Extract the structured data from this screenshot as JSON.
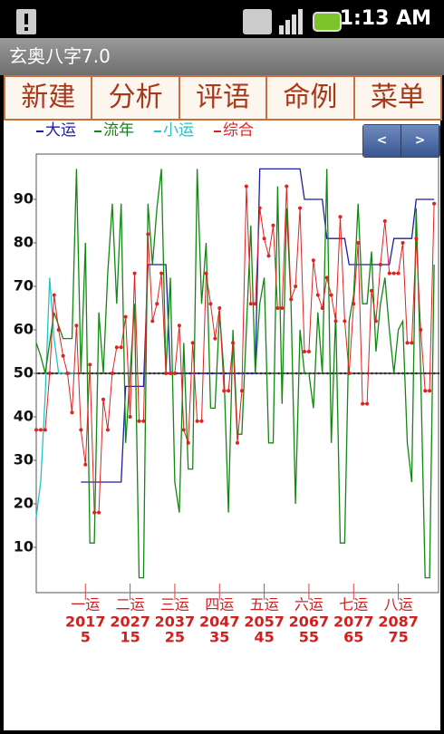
{
  "status": {
    "time": "1:13 AM"
  },
  "app": {
    "title": "玄奥八字7.0"
  },
  "menu": [
    "新建",
    "分析",
    "评语",
    "命例",
    "菜单"
  ],
  "nav": [
    "<",
    ">"
  ],
  "chart_data": {
    "type": "line",
    "x": [
      -6,
      -5,
      -4,
      -3,
      -2,
      -1,
      0,
      1,
      2,
      3,
      4,
      5,
      6,
      7,
      8,
      9,
      10,
      11,
      12,
      13,
      14,
      15,
      16,
      17,
      18,
      19,
      20,
      21,
      22,
      23,
      24,
      25,
      26,
      27,
      28,
      29,
      30,
      31,
      32,
      33,
      34,
      35,
      36,
      37,
      38,
      39,
      40,
      41,
      42,
      43,
      44,
      45,
      46,
      47,
      48,
      49,
      50,
      51,
      52,
      53,
      54,
      55,
      56,
      57,
      58,
      59,
      60,
      61,
      62,
      63,
      64,
      65,
      66,
      67,
      68,
      69,
      70,
      71,
      72,
      73,
      74,
      75,
      76,
      77,
      78,
      79,
      80,
      81,
      82,
      83
    ],
    "xlim": [
      -6,
      84
    ],
    "xticks": [
      5,
      15,
      25,
      35,
      45,
      55,
      65,
      75
    ],
    "xtick_periods": [
      "一运",
      "二运",
      "三运",
      "四运",
      "五运",
      "六运",
      "七运",
      "八运"
    ],
    "xtick_years": [
      "2017",
      "2027",
      "2037",
      "2047",
      "2057",
      "2067",
      "2077",
      "2087"
    ],
    "ylim": [
      0,
      100
    ],
    "yticks": [
      10,
      20,
      30,
      40,
      50,
      60,
      70,
      80,
      90
    ],
    "baseline": 50,
    "series": [
      {
        "name": "大运",
        "color": "#1c1ca8",
        "values": [
          null,
          null,
          null,
          null,
          null,
          null,
          null,
          null,
          null,
          null,
          25,
          25,
          25,
          25,
          25,
          25,
          25,
          25,
          25,
          25,
          47,
          47,
          47,
          47,
          47,
          75,
          75,
          75,
          75,
          75,
          50,
          50,
          50,
          50,
          50,
          50,
          50,
          50,
          50,
          50,
          50,
          50,
          50,
          50,
          50,
          50,
          50,
          50,
          50,
          50,
          97,
          97,
          97,
          97,
          97,
          97,
          97,
          97,
          97,
          97,
          90,
          90,
          90,
          90,
          90,
          81,
          81,
          81,
          81,
          81,
          75,
          75,
          75,
          75,
          75,
          75,
          75,
          75,
          75,
          75,
          81,
          81,
          81,
          81,
          81,
          90,
          90,
          90,
          90,
          90
        ]
      },
      {
        "name": "流年",
        "color": "#118811",
        "values": [
          57,
          54,
          50,
          57,
          64,
          61,
          58,
          58,
          58,
          97,
          50,
          80,
          11,
          11,
          64,
          50,
          73,
          89,
          66,
          89,
          34,
          50,
          66,
          3,
          3,
          89,
          75,
          88,
          97,
          50,
          72,
          25,
          18,
          57,
          28,
          28,
          97,
          66,
          80,
          42,
          42,
          64,
          50,
          18,
          60,
          36,
          36,
          60,
          84,
          50,
          66,
          72,
          34,
          34,
          93,
          43,
          88,
          66,
          20,
          60,
          50,
          50,
          42,
          64,
          50,
          97,
          34,
          64,
          11,
          11,
          62,
          68,
          89,
          66,
          66,
          78,
          55,
          66,
          72,
          60,
          50,
          60,
          62,
          34,
          25,
          88,
          50,
          3,
          3,
          75
        ]
      },
      {
        "name": "小运",
        "color": "#22c4c4",
        "values": [
          17,
          25,
          45,
          72,
          58,
          50,
          50,
          50,
          50,
          50,
          null,
          null,
          null,
          null,
          null,
          null,
          null,
          null,
          null,
          null,
          null,
          null,
          null,
          null,
          null,
          null,
          null,
          null,
          null,
          null,
          null,
          null,
          null,
          null,
          null,
          null,
          null,
          null,
          null,
          null,
          null,
          null,
          null,
          null,
          null,
          null,
          null,
          null,
          null,
          null,
          null,
          null,
          null,
          null,
          null,
          null,
          null,
          null,
          null,
          null,
          null,
          null,
          null,
          null,
          null,
          null,
          null,
          null,
          null,
          null,
          null,
          null,
          null,
          null,
          null,
          null,
          null,
          null,
          null,
          null,
          null,
          null,
          null,
          null,
          null,
          null,
          null,
          null,
          null,
          null
        ]
      },
      {
        "name": "综合",
        "color": "#e02222",
        "values": [
          37,
          37,
          37,
          50,
          68,
          60,
          54,
          50,
          41,
          61,
          37,
          29,
          52,
          18,
          18,
          44,
          37,
          50,
          56,
          56,
          63,
          40,
          73,
          39,
          39,
          82,
          62,
          66,
          73,
          50,
          50,
          50,
          61,
          37,
          34,
          57,
          39,
          39,
          73,
          66,
          58,
          65,
          46,
          46,
          57,
          34,
          46,
          93,
          66,
          66,
          88,
          81,
          77,
          84,
          65,
          65,
          93,
          67,
          70,
          88,
          55,
          55,
          76,
          68,
          65,
          72,
          68,
          62,
          86,
          62,
          50,
          66,
          80,
          43,
          43,
          69,
          62,
          75,
          85,
          73,
          73,
          73,
          80,
          57,
          57,
          81,
          60,
          46,
          46,
          89
        ]
      }
    ]
  }
}
